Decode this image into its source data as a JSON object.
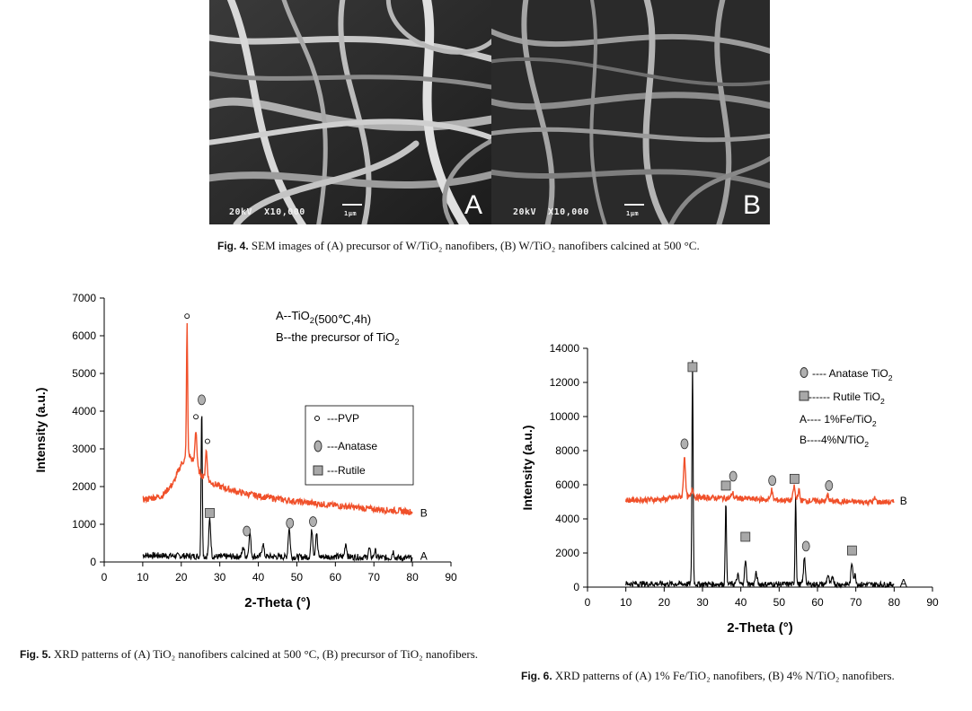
{
  "fig4": {
    "panels": [
      {
        "letter": "A",
        "voltage": "20kV",
        "magnification": "X10,000",
        "scale": "1μm"
      },
      {
        "letter": "B",
        "voltage": "20kV",
        "magnification": "X10,000",
        "scale": "1μm"
      }
    ],
    "caption_label": "Fig. 4.",
    "caption_text": "SEM images of (A) precursor of W/TiO₂ nanofibers, (B) W/TiO₂ nanofibers calcined at 500 °C."
  },
  "fig5": {
    "caption_label": "Fig. 5.",
    "caption_text": "XRD patterns of (A) TiO₂ nanofibers calcined at 500 °C, (B) precursor of TiO₂ nanofibers."
  },
  "fig6": {
    "caption_label": "Fig. 6.",
    "caption_text": "XRD patterns of (A) 1% Fe/TiO₂ nanofibers, (B) 4% N/TiO₂ nanofibers."
  },
  "colors": {
    "black_series": "#000000",
    "orange_series": "#f0502a"
  },
  "chart_data": [
    {
      "id": "fig5",
      "type": "line",
      "xlabel": "2-Theta (°)",
      "ylabel": "Intensity (a.u.)",
      "xlim": [
        0,
        90
      ],
      "ylim": [
        0,
        7000
      ],
      "xticks": [
        0,
        10,
        20,
        30,
        40,
        50,
        60,
        70,
        80,
        90
      ],
      "yticks": [
        0,
        1000,
        2000,
        3000,
        4000,
        5000,
        6000,
        7000
      ],
      "annotations": [
        "A--TiO₂(500℃,4h)",
        "B--the precursor of TiO₂"
      ],
      "legend": [
        {
          "marker": "small-circle",
          "label": "---PVP"
        },
        {
          "marker": "ellipse",
          "label": "---Anatase"
        },
        {
          "marker": "square",
          "label": "---Rutile"
        }
      ],
      "series": [
        {
          "name": "A",
          "color": "#000000",
          "baseline": [
            [
              10,
              180
            ],
            [
              20,
              160
            ],
            [
              30,
              140
            ],
            [
              40,
              150
            ],
            [
              50,
              130
            ],
            [
              60,
              140
            ],
            [
              70,
              120
            ],
            [
              80,
              100
            ]
          ],
          "peaks": [
            [
              25.3,
              4100
            ],
            [
              27.4,
              1150
            ],
            [
              36.1,
              400
            ],
            [
              37.8,
              800
            ],
            [
              41.2,
              500
            ],
            [
              48.0,
              900
            ],
            [
              53.9,
              850
            ],
            [
              55.1,
              780
            ],
            [
              62.7,
              500
            ],
            [
              68.8,
              350
            ],
            [
              70.3,
              300
            ],
            [
              75.0,
              280
            ]
          ]
        },
        {
          "name": "B",
          "color": "#f0502a",
          "baseline": [
            [
              10,
              1650
            ],
            [
              15,
              1750
            ],
            [
              18,
              2100
            ],
            [
              20,
              2600
            ],
            [
              22,
              2850
            ],
            [
              24,
              2500
            ],
            [
              26,
              2200
            ],
            [
              30,
              2000
            ],
            [
              35,
              1850
            ],
            [
              40,
              1750
            ],
            [
              50,
              1600
            ],
            [
              60,
              1500
            ],
            [
              70,
              1400
            ],
            [
              80,
              1330
            ]
          ],
          "peaks": [
            [
              21.5,
              6300
            ],
            [
              23.8,
              3500
            ],
            [
              26.5,
              2950
            ]
          ]
        }
      ],
      "markers": [
        {
          "x": 21.5,
          "y": 6520,
          "shape": "small-circle"
        },
        {
          "x": 23.8,
          "y": 3850,
          "shape": "small-circle"
        },
        {
          "x": 26.8,
          "y": 3200,
          "shape": "small-circle"
        },
        {
          "x": 25.3,
          "y": 4300,
          "shape": "ellipse"
        },
        {
          "x": 27.4,
          "y": 1300,
          "shape": "square"
        },
        {
          "x": 37.0,
          "y": 820,
          "shape": "ellipse"
        },
        {
          "x": 48.2,
          "y": 1030,
          "shape": "ellipse"
        },
        {
          "x": 54.2,
          "y": 1070,
          "shape": "ellipse"
        }
      ],
      "series_labels": [
        {
          "text": "B",
          "x": 82,
          "y": 1300
        },
        {
          "text": "A",
          "x": 82,
          "y": 150
        }
      ]
    },
    {
      "id": "fig6",
      "type": "line",
      "xlabel": "2-Theta (°)",
      "ylabel": "Intensity (a.u.)",
      "xlim": [
        0,
        90
      ],
      "ylim": [
        0,
        14000
      ],
      "xticks": [
        0,
        10,
        20,
        30,
        40,
        50,
        60,
        70,
        80,
        90
      ],
      "yticks": [
        0,
        2000,
        4000,
        6000,
        8000,
        10000,
        12000,
        14000
      ],
      "legend": [
        {
          "marker": "ellipse",
          "label": "---- Anatase TiO₂"
        },
        {
          "marker": "square",
          "label": "------ Rutile TiO₂"
        },
        {
          "marker": "none",
          "label": "A---- 1%Fe/TiO₂"
        },
        {
          "marker": "none",
          "label": "B----4%N/TiO₂"
        }
      ],
      "series": [
        {
          "name": "A",
          "color": "#000000",
          "baseline": [
            [
              10,
              200
            ],
            [
              30,
              180
            ],
            [
              50,
              170
            ],
            [
              70,
              160
            ],
            [
              80,
              150
            ]
          ],
          "peaks": [
            [
              27.4,
              13300
            ],
            [
              36.1,
              5200
            ],
            [
              39.2,
              700
            ],
            [
              41.2,
              1500
            ],
            [
              44.0,
              800
            ],
            [
              54.3,
              5400
            ],
            [
              56.6,
              1700
            ],
            [
              62.7,
              700
            ],
            [
              64.0,
              600
            ],
            [
              69.0,
              1400
            ],
            [
              69.8,
              700
            ]
          ]
        },
        {
          "name": "B",
          "color": "#f0502a",
          "baseline": [
            [
              10,
              5100
            ],
            [
              20,
              5150
            ],
            [
              24,
              5300
            ],
            [
              30,
              5250
            ],
            [
              40,
              5200
            ],
            [
              50,
              5100
            ],
            [
              60,
              5050
            ],
            [
              70,
              5000
            ],
            [
              80,
              4980
            ]
          ],
          "peaks": [
            [
              25.3,
              7700
            ],
            [
              27.4,
              5850
            ],
            [
              37.8,
              5550
            ],
            [
              48.0,
              5700
            ],
            [
              53.9,
              5900
            ],
            [
              55.1,
              5700
            ],
            [
              62.7,
              5400
            ],
            [
              75.0,
              5200
            ]
          ]
        }
      ],
      "markers": [
        {
          "x": 27.4,
          "y": 12900,
          "shape": "square"
        },
        {
          "x": 25.3,
          "y": 8400,
          "shape": "ellipse"
        },
        {
          "x": 36.1,
          "y": 5950,
          "shape": "square"
        },
        {
          "x": 38.0,
          "y": 6500,
          "shape": "ellipse"
        },
        {
          "x": 48.2,
          "y": 6250,
          "shape": "ellipse"
        },
        {
          "x": 54.0,
          "y": 6350,
          "shape": "square"
        },
        {
          "x": 63.0,
          "y": 5950,
          "shape": "ellipse"
        },
        {
          "x": 41.2,
          "y": 2950,
          "shape": "square"
        },
        {
          "x": 57.0,
          "y": 2400,
          "shape": "ellipse"
        },
        {
          "x": 69.0,
          "y": 2150,
          "shape": "square"
        }
      ],
      "series_labels": [
        {
          "text": "B",
          "x": 81.5,
          "y": 5050
        },
        {
          "text": "A",
          "x": 81.5,
          "y": 250
        }
      ]
    }
  ]
}
